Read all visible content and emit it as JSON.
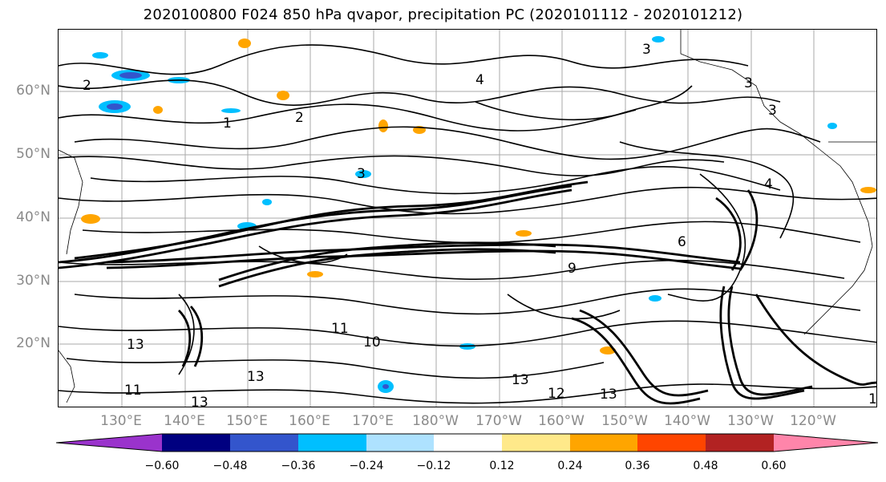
{
  "title": "2020100800 F024 850 hPa qvapor, precipitation PC (2020101112 - 2020101212)",
  "map": {
    "lat_labels": [
      "60°N",
      "50°N",
      "40°N",
      "30°N",
      "20°N"
    ],
    "lon_labels": [
      "130°E",
      "140°E",
      "150°E",
      "160°E",
      "170°E",
      "180°W",
      "170°W",
      "160°W",
      "150°W",
      "140°W",
      "130°W",
      "120°W"
    ],
    "contour_labels": [
      "1",
      "2",
      "3",
      "4",
      "6",
      "9",
      "10",
      "11",
      "12",
      "13"
    ],
    "contour_line_color": "#000000",
    "gridline_color": "#a9a9a9",
    "coastline_color": "#000000"
  },
  "colorbar": {
    "ticks": [
      "−0.60",
      "−0.48",
      "−0.36",
      "−0.24",
      "−0.12",
      "0.12",
      "0.24",
      "0.36",
      "0.48",
      "0.60"
    ],
    "colors": [
      "#9a33cc",
      "#000080",
      "#3355cc",
      "#00bfff",
      "#aee2ff",
      "#ffffff",
      "#ffe98a",
      "#ffa500",
      "#ff4500",
      "#b22222",
      "#ff85aa"
    ]
  }
}
